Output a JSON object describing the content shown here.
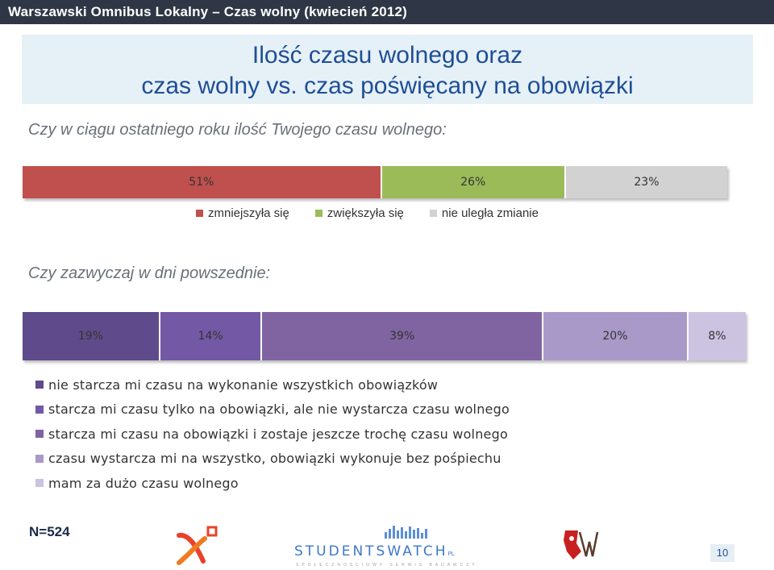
{
  "header": {
    "text": "Warszawski Omnibus Lokalny – Czas wolny  (kwiecień 2012)"
  },
  "title": {
    "line1": "Ilość czasu wolnego oraz",
    "line2": "czas wolny vs. czas poświęcany na obowiązki"
  },
  "chart_data": [
    {
      "type": "bar",
      "orientation": "horizontal-stacked-100",
      "question": "Czy w ciągu ostatniego roku ilość Twojego czasu wolnego:",
      "series": [
        {
          "name": "zmniejszyła się",
          "value": 51,
          "label": "51%",
          "color": "#c0504d"
        },
        {
          "name": "zwiększyła się",
          "value": 26,
          "label": "26%",
          "color": "#9bbb59"
        },
        {
          "name": "nie uległa zmianie",
          "value": 23,
          "label": "23%",
          "color": "#d2d2d2"
        }
      ],
      "legend_placement": "bottom"
    },
    {
      "type": "bar",
      "orientation": "horizontal-stacked-100",
      "question": "Czy zazwyczaj w dni powszednie:",
      "series": [
        {
          "name": "nie starcza mi czasu na wykonanie wszystkich obowiązków",
          "value": 19,
          "label": "19%",
          "color": "#5f4b8b"
        },
        {
          "name": "starcza mi czasu tylko na obowiązki, ale nie wystarcza czasu wolnego",
          "value": 14,
          "label": "14%",
          "color": "#7359a5"
        },
        {
          "name": "starcza mi czasu na obowiązki i zostaje jeszcze trochę czasu wolnego",
          "value": 39,
          "label": "39%",
          "color": "#8064a2"
        },
        {
          "name": "czasu wystarcza mi na wszystko, obowiązki wykonuje bez pośpiechu",
          "value": 20,
          "label": "20%",
          "color": "#a999c8"
        },
        {
          "name": "mam za dużo czasu wolnego",
          "value": 8,
          "label": "8%",
          "color": "#ccc3e1"
        }
      ],
      "legend_placement": "bottom"
    }
  ],
  "footer": {
    "n_label": "N=524",
    "logo_text": "STUDENTSWATCH",
    "logo_suffix": "PL",
    "logo_sub": "SPOŁECZNOŚCIOWY SERWIS BADAWCZY",
    "page": "10"
  }
}
